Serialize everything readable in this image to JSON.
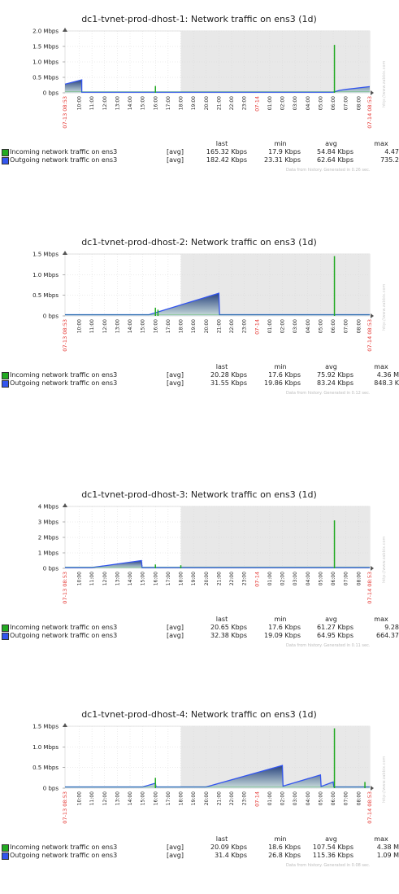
{
  "columns": {
    "last": "last",
    "min": "min",
    "avg": "avg",
    "max": "max"
  },
  "footer_note": "Data from history. Generated in",
  "watermark": "http://www.zabbix.com",
  "colors": {
    "incoming": "#22aa22",
    "outgoing": "#3355ee",
    "outgoing_fill_top": "#1e3a78",
    "outgoing_fill_bottom": "#c8dcdc",
    "grey_zone": "#e8e8e8"
  },
  "graphs": [
    {
      "title": "dc1-tvnet-prod-dhost-1: Network traffic on ens3 (1d)",
      "generated": "Data from history. Generated in 0.26 sec.",
      "rows": [
        {
          "name": "Incoming network traffic on ens3",
          "func": "[avg]",
          "last": "165.32 Kbps",
          "min": "17.9 Kbps",
          "avg": "54.84 Kbps",
          "max": "4.47"
        },
        {
          "name": "Outgoing network traffic on ens3",
          "func": "[avg]",
          "last": "182.42 Kbps",
          "min": "23.31 Kbps",
          "avg": "62.64 Kbps",
          "max": "735.2"
        }
      ],
      "chart_data": {
        "type": "area",
        "title": "dc1-tvnet-prod-dhost-1: Network traffic on ens3 (1d)",
        "y_ticks": [
          "2.0 Mbps",
          "1.5 Mbps",
          "1.0 Mbps",
          "0.5 Mbps",
          "0 bps"
        ],
        "ylim": [
          0,
          2.0
        ],
        "x_start": "07-13 08:53",
        "x_end": "07-14 08:53",
        "x_ticks": [
          "10:00",
          "11:00",
          "12:00",
          "13:00",
          "14:00",
          "15:00",
          "16:00",
          "17:00",
          "18:00",
          "19:00",
          "20:00",
          "21:00",
          "22:00",
          "23:00",
          "07-14",
          "01:00",
          "02:00",
          "03:00",
          "04:00",
          "05:00",
          "06:00",
          "07:00",
          "08:00"
        ],
        "unit": "Mbps",
        "outgoing": [
          [
            8.88,
            0.28
          ],
          [
            10.2,
            0.42
          ],
          [
            10.2,
            0.02
          ],
          [
            30.0,
            0.02
          ],
          [
            30.5,
            0.08
          ],
          [
            31.0,
            0.11
          ],
          [
            32.88,
            0.2
          ]
        ],
        "incoming_spikes": [
          [
            16.0,
            0.22
          ],
          [
            30.1,
            1.55
          ]
        ]
      }
    },
    {
      "title": "dc1-tvnet-prod-dhost-2: Network traffic on ens3 (1d)",
      "generated": "Data from history. Generated in 0.12 sec.",
      "rows": [
        {
          "name": "Incoming network traffic on ens3",
          "func": "[avg]",
          "last": "20.28 Kbps",
          "min": "17.6 Kbps",
          "avg": "75.92 Kbps",
          "max": "4.36 M"
        },
        {
          "name": "Outgoing network traffic on ens3",
          "func": "[avg]",
          "last": "31.55 Kbps",
          "min": "19.86 Kbps",
          "avg": "83.24 Kbps",
          "max": "848.3 K"
        }
      ],
      "chart_data": {
        "type": "area",
        "title": "dc1-tvnet-prod-dhost-2: Network traffic on ens3 (1d)",
        "y_ticks": [
          "1.5 Mbps",
          "1.0 Mbps",
          "0.5 Mbps",
          "0 bps"
        ],
        "ylim": [
          0,
          1.5
        ],
        "x_start": "07-13 08:53",
        "x_end": "07-14 08:53",
        "x_ticks": [
          "10:00",
          "11:00",
          "12:00",
          "13:00",
          "14:00",
          "15:00",
          "16:00",
          "17:00",
          "18:00",
          "19:00",
          "20:00",
          "21:00",
          "22:00",
          "23:00",
          "07-14",
          "01:00",
          "02:00",
          "03:00",
          "04:00",
          "05:00",
          "06:00",
          "07:00",
          "08:00"
        ],
        "unit": "Mbps",
        "outgoing": [
          [
            8.88,
            0.03
          ],
          [
            15.5,
            0.03
          ],
          [
            21.0,
            0.55
          ],
          [
            21.05,
            0.03
          ],
          [
            32.88,
            0.03
          ]
        ],
        "incoming_spikes": [
          [
            16.0,
            0.2
          ],
          [
            16.2,
            0.15
          ],
          [
            30.1,
            1.45
          ]
        ]
      }
    },
    {
      "title": "dc1-tvnet-prod-dhost-3: Network traffic on ens3 (1d)",
      "generated": "Data from history. Generated in 0.11 sec.",
      "rows": [
        {
          "name": "Incoming network traffic on ens3",
          "func": "[avg]",
          "last": "20.65 Kbps",
          "min": "17.6 Kbps",
          "avg": "61.27 Kbps",
          "max": "9.28"
        },
        {
          "name": "Outgoing network traffic on ens3",
          "func": "[avg]",
          "last": "32.38 Kbps",
          "min": "19.09 Kbps",
          "avg": "64.95 Kbps",
          "max": "664.37"
        }
      ],
      "chart_data": {
        "type": "area",
        "title": "dc1-tvnet-prod-dhost-3: Network traffic on ens3 (1d)",
        "y_ticks": [
          "4 Mbps",
          "3 Mbps",
          "2 Mbps",
          "1 Mbps",
          "0 bps"
        ],
        "ylim": [
          0,
          4
        ],
        "x_start": "07-13 08:53",
        "x_end": "07-14 08:53",
        "x_ticks": [
          "10:00",
          "11:00",
          "12:00",
          "13:00",
          "14:00",
          "15:00",
          "16:00",
          "17:00",
          "18:00",
          "19:00",
          "20:00",
          "21:00",
          "22:00",
          "23:00",
          "07-14",
          "01:00",
          "02:00",
          "03:00",
          "04:00",
          "05:00",
          "06:00",
          "07:00",
          "08:00"
        ],
        "unit": "Mbps",
        "outgoing": [
          [
            8.88,
            0.05
          ],
          [
            11.0,
            0.05
          ],
          [
            14.9,
            0.5
          ],
          [
            14.95,
            0.05
          ],
          [
            32.88,
            0.05
          ]
        ],
        "incoming_spikes": [
          [
            16.0,
            0.25
          ],
          [
            18.0,
            0.2
          ],
          [
            30.1,
            3.1
          ]
        ]
      }
    },
    {
      "title": "dc1-tvnet-prod-dhost-4: Network traffic on ens3 (1d)",
      "generated": "Data from history. Generated in 0.08 sec.",
      "rows": [
        {
          "name": "Incoming network traffic on ens3",
          "func": "[avg]",
          "last": "20.09 Kbps",
          "min": "18.6 Kbps",
          "avg": "107.54 Kbps",
          "max": "4.38 M"
        },
        {
          "name": "Outgoing network traffic on ens3",
          "func": "[avg]",
          "last": "31.4 Kbps",
          "min": "26.8 Kbps",
          "avg": "115.36 Kbps",
          "max": "1.09 M"
        }
      ],
      "chart_data": {
        "type": "area",
        "title": "dc1-tvnet-prod-dhost-4: Network traffic on ens3 (1d)",
        "y_ticks": [
          "1.5 Mbps",
          "1.0 Mbps",
          "0.5 Mbps",
          "0 bps"
        ],
        "ylim": [
          0,
          1.5
        ],
        "x_start": "07-13 08:53",
        "x_end": "07-14 08:53",
        "x_ticks": [
          "10:00",
          "11:00",
          "12:00",
          "13:00",
          "14:00",
          "15:00",
          "16:00",
          "17:00",
          "18:00",
          "19:00",
          "20:00",
          "21:00",
          "22:00",
          "23:00",
          "07-14",
          "01:00",
          "02:00",
          "03:00",
          "04:00",
          "05:00",
          "06:00",
          "07:00",
          "08:00"
        ],
        "unit": "Mbps",
        "outgoing": [
          [
            8.88,
            0.03
          ],
          [
            15.0,
            0.03
          ],
          [
            16.0,
            0.12
          ],
          [
            16.05,
            0.03
          ],
          [
            20.0,
            0.03
          ],
          [
            26.0,
            0.55
          ],
          [
            26.05,
            0.05
          ],
          [
            29.0,
            0.32
          ],
          [
            29.05,
            0.04
          ],
          [
            30.0,
            0.15
          ],
          [
            30.05,
            0.03
          ],
          [
            32.88,
            0.03
          ]
        ],
        "incoming_spikes": [
          [
            16.0,
            0.25
          ],
          [
            30.1,
            1.45
          ],
          [
            32.5,
            0.15
          ]
        ]
      }
    }
  ]
}
